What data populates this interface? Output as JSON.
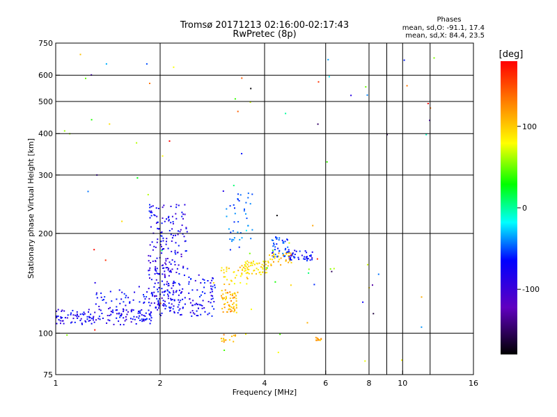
{
  "chart_data": {
    "type": "scatter",
    "title": "Tromsø 20171213 02:16:00-02:17:43",
    "subtitle": "RwPretec (8p)",
    "xlabel": "Frequency [MHz]",
    "ylabel": "Stationary phase Virtual Height [km]",
    "x_scale": "log",
    "y_scale": "log",
    "xlim": [
      1,
      16
    ],
    "ylim": [
      75,
      750
    ],
    "x_ticks": [
      1,
      2,
      4,
      6,
      8,
      10,
      16
    ],
    "x_gridlines": [
      2,
      4,
      6,
      8,
      9,
      10,
      12
    ],
    "y_ticks": [
      75,
      100,
      200,
      300,
      400,
      500,
      600,
      750
    ],
    "y_gridlines": [
      100,
      200,
      300,
      400,
      500,
      600
    ],
    "grid": true,
    "stats": {
      "heading": "Phases",
      "o_line": "mean, sd,O: -91.1, 17.4",
      "x_line": "mean, sd,X:  84.4, 23.5"
    },
    "colorbar": {
      "label": "[deg]",
      "range": [
        -180,
        180
      ],
      "ticks": [
        100,
        0,
        -100
      ],
      "colors": [
        "#ff0000",
        "#ffa500",
        "#ffff00",
        "#00ff00",
        "#00ffff",
        "#0000ff",
        "#8000ff",
        "#000000"
      ]
    },
    "clusters": [
      {
        "f": [
          1.0,
          1.9
        ],
        "h": [
          106,
          118
        ],
        "phase": -110,
        "n": 120
      },
      {
        "f": [
          1.3,
          2.0
        ],
        "h": [
          108,
          135
        ],
        "phase": -105,
        "n": 90
      },
      {
        "f": [
          1.85,
          2.4
        ],
        "h": [
          150,
          245
        ],
        "phase": -110,
        "n": 140
      },
      {
        "f": [
          1.85,
          2.2
        ],
        "h": [
          120,
          170
        ],
        "phase": -115,
        "n": 70
      },
      {
        "f": [
          2.0,
          2.9
        ],
        "h": [
          112,
          150
        ],
        "phase": -105,
        "n": 130
      },
      {
        "f": [
          3.0,
          3.35
        ],
        "h": [
          115,
          135
        ],
        "phase": 110,
        "n": 60
      },
      {
        "f": [
          3.0,
          3.6
        ],
        "h": [
          140,
          160
        ],
        "phase": 95,
        "n": 35
      },
      {
        "f": [
          3.5,
          4.1
        ],
        "h": [
          150,
          165
        ],
        "phase": 90,
        "n": 55
      },
      {
        "f": [
          4.1,
          4.8
        ],
        "h": [
          160,
          175
        ],
        "phase": 105,
        "n": 35
      },
      {
        "f": [
          4.2,
          4.7
        ],
        "h": [
          170,
          195
        ],
        "phase": -80,
        "n": 40
      },
      {
        "f": [
          4.7,
          5.5
        ],
        "h": [
          165,
          178
        ],
        "phase": -100,
        "n": 40
      },
      {
        "f": [
          3.1,
          3.7
        ],
        "h": [
          175,
          270
        ],
        "phase": -75,
        "n": 40
      },
      {
        "f": [
          3.0,
          3.3
        ],
        "h": [
          94,
          99
        ],
        "phase": 115,
        "n": 15
      },
      {
        "f": [
          5.6,
          5.9
        ],
        "h": [
          95,
          97
        ],
        "phase": 115,
        "n": 12
      },
      {
        "f": [
          1.05,
          12.5
        ],
        "h": [
          80,
          700
        ],
        "phase": 0,
        "n": 90
      }
    ]
  }
}
